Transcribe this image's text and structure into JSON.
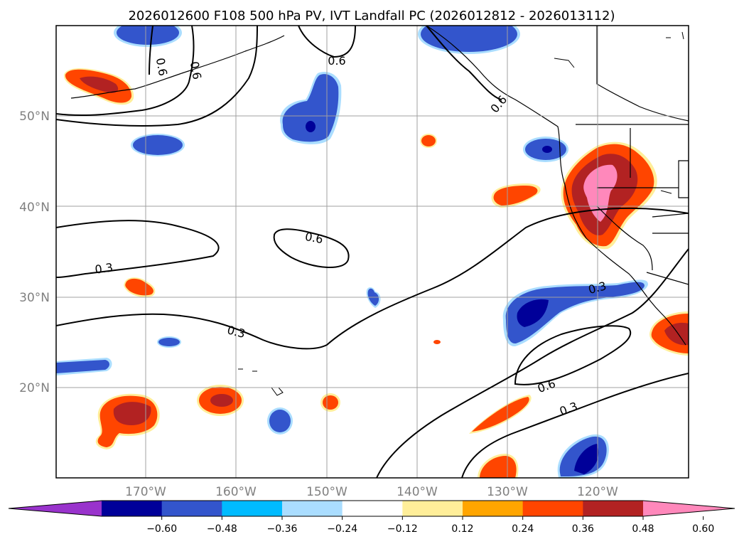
{
  "title": "2026012600 F108 500 hPa PV, IVT Landfall PC (2026012812 - 2026013112)",
  "map": {
    "lat_labels": [
      "50°N",
      "40°N",
      "30°N",
      "20°N"
    ],
    "lon_labels": [
      "170°W",
      "160°W",
      "150°W",
      "140°W",
      "130°W",
      "120°W"
    ],
    "contour_labels": [
      "0.6",
      "0.6",
      "0.6",
      "0.6",
      "0.6",
      "0.3",
      "0.3",
      "0.3",
      "0.6",
      "0.3"
    ]
  },
  "colorbar": {
    "tick_labels": [
      "−0.60",
      "−0.48",
      "−0.36",
      "−0.24",
      "−0.12",
      "0.12",
      "0.24",
      "0.36",
      "0.48",
      "0.60"
    ],
    "colors": [
      "#9933cc",
      "#000099",
      "#3355cc",
      "#00bbff",
      "#aaddff",
      "#ffffff",
      "#ffee99",
      "#ffa500",
      "#ff4500",
      "#b22222",
      "#ff88bb"
    ]
  },
  "colors": {
    "neg_1": "#aaddff",
    "neg_2": "#00bbff",
    "neg_3": "#3355cc",
    "neg_4": "#000099",
    "pos_1": "#ffee99",
    "pos_2": "#ffa500",
    "pos_3": "#ff4500",
    "pos_4": "#b22222",
    "pos_5": "#ff88bb"
  }
}
